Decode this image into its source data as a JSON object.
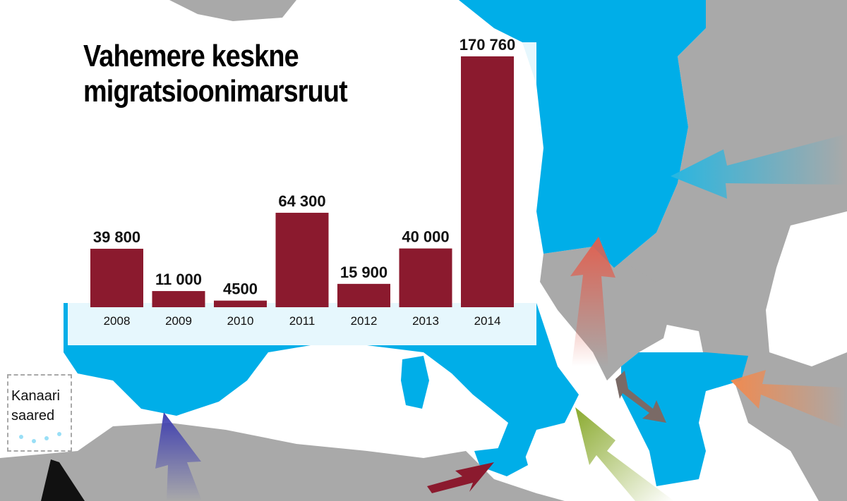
{
  "title": "Vahemere keskne migratsioonimarsruut",
  "map_label": "Kanaari saared",
  "colors": {
    "bar": "#8b1a2e",
    "eu_country": "#00aee8",
    "non_eu_land": "#a9a9a9",
    "sea": "#ffffff",
    "border": "#e6e6e6"
  },
  "chart_data": {
    "type": "bar",
    "title": "Vahemere keskne migratsioonimarsruut",
    "categories": [
      "2008",
      "2009",
      "2010",
      "2011",
      "2012",
      "2013",
      "2014"
    ],
    "values": [
      39800,
      11000,
      4500,
      64300,
      15900,
      40000,
      170760
    ],
    "value_labels": [
      "39 800",
      "11 000",
      "4500",
      "64 300",
      "15 900",
      "40 000",
      "170 760"
    ],
    "xlabel": "",
    "ylabel": "",
    "ylim": [
      0,
      170760
    ],
    "grid": false,
    "legend": "none"
  },
  "arrows": [
    {
      "name": "east-land-arrow",
      "color": "#29b6e0"
    },
    {
      "name": "western-balkan-arrow",
      "color": "#e06050"
    },
    {
      "name": "eastern-mediterranean-arrow",
      "color": "#f08a50"
    },
    {
      "name": "albania-greece-arrow",
      "color": "#7a6a66"
    },
    {
      "name": "apulia-calabria-arrow",
      "color": "#8aaa2e"
    },
    {
      "name": "central-mediterranean-arrow",
      "color": "#8b1a2e"
    },
    {
      "name": "western-mediterranean-arrow",
      "color": "#3d3db0"
    },
    {
      "name": "western-african-arrow",
      "color": "#111111"
    }
  ]
}
